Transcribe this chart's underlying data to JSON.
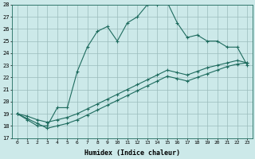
{
  "xlabel": "Humidex (Indice chaleur)",
  "bg_color": "#cce9e9",
  "grid_color": "#9bbcbc",
  "line_color": "#1e6b5e",
  "xlim_min": -0.5,
  "xlim_max": 23.5,
  "ylim_min": 17,
  "ylim_max": 28,
  "yticks": [
    17,
    18,
    19,
    20,
    21,
    22,
    23,
    24,
    25,
    26,
    27,
    28
  ],
  "xticks": [
    0,
    1,
    2,
    3,
    4,
    5,
    6,
    7,
    8,
    9,
    10,
    11,
    12,
    13,
    14,
    15,
    16,
    17,
    18,
    19,
    20,
    21,
    22,
    23
  ],
  "line1_x": [
    0,
    1,
    2,
    3,
    4,
    5,
    6,
    7,
    8,
    9,
    10,
    11,
    12,
    13,
    14,
    15,
    16,
    17,
    18,
    19,
    20,
    21,
    22,
    23
  ],
  "line1_y": [
    19.0,
    18.5,
    18.0,
    18.0,
    19.5,
    19.5,
    22.5,
    24.5,
    25.8,
    26.2,
    25.0,
    26.5,
    27.0,
    28.0,
    28.0,
    28.2,
    26.5,
    25.3,
    25.5,
    25.0,
    25.0,
    24.5,
    24.5,
    23.0
  ],
  "line2_x": [
    0,
    1,
    2,
    3,
    4,
    5,
    6,
    7,
    8,
    9,
    10,
    11,
    12,
    13,
    14,
    15,
    16,
    17,
    18,
    19,
    20,
    21,
    22,
    23
  ],
  "line2_y": [
    19.0,
    18.8,
    18.5,
    18.3,
    18.5,
    18.7,
    19.0,
    19.4,
    19.8,
    20.2,
    20.6,
    21.0,
    21.4,
    21.8,
    22.2,
    22.6,
    22.4,
    22.2,
    22.5,
    22.8,
    23.0,
    23.2,
    23.4,
    23.2
  ],
  "line3_x": [
    0,
    1,
    2,
    3,
    4,
    5,
    6,
    7,
    8,
    9,
    10,
    11,
    12,
    13,
    14,
    15,
    16,
    17,
    18,
    19,
    20,
    21,
    22,
    23
  ],
  "line3_y": [
    19.0,
    18.6,
    18.2,
    17.8,
    18.0,
    18.2,
    18.5,
    18.9,
    19.3,
    19.7,
    20.1,
    20.5,
    20.9,
    21.3,
    21.7,
    22.1,
    21.9,
    21.7,
    22.0,
    22.3,
    22.6,
    22.9,
    23.1,
    23.2
  ]
}
